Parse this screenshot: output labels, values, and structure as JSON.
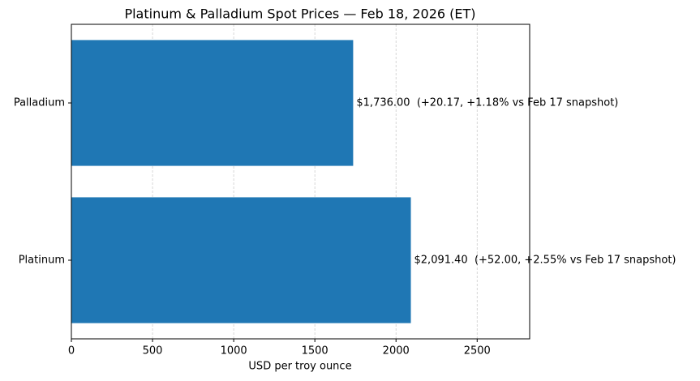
{
  "chart_data": {
    "type": "barh",
    "title": "Platinum & Palladium Spot Prices — Feb 18, 2026 (ET)",
    "xlabel": "USD per troy ounce",
    "categories": [
      "Platinum",
      "Palladium"
    ],
    "values": [
      2091.4,
      1736.0
    ],
    "value_labels": [
      "$2,091.40  (+52.00, +2.55% vs Feb 17 snapshot)",
      "$1,736.00  (+20.17, +1.18% vs Feb 17 snapshot)"
    ],
    "color": "#1f77b4",
    "xlim": [
      0,
      2823.4
    ],
    "xticks": [
      0,
      500,
      1000,
      1500,
      2000,
      2500
    ],
    "grid": true
  }
}
